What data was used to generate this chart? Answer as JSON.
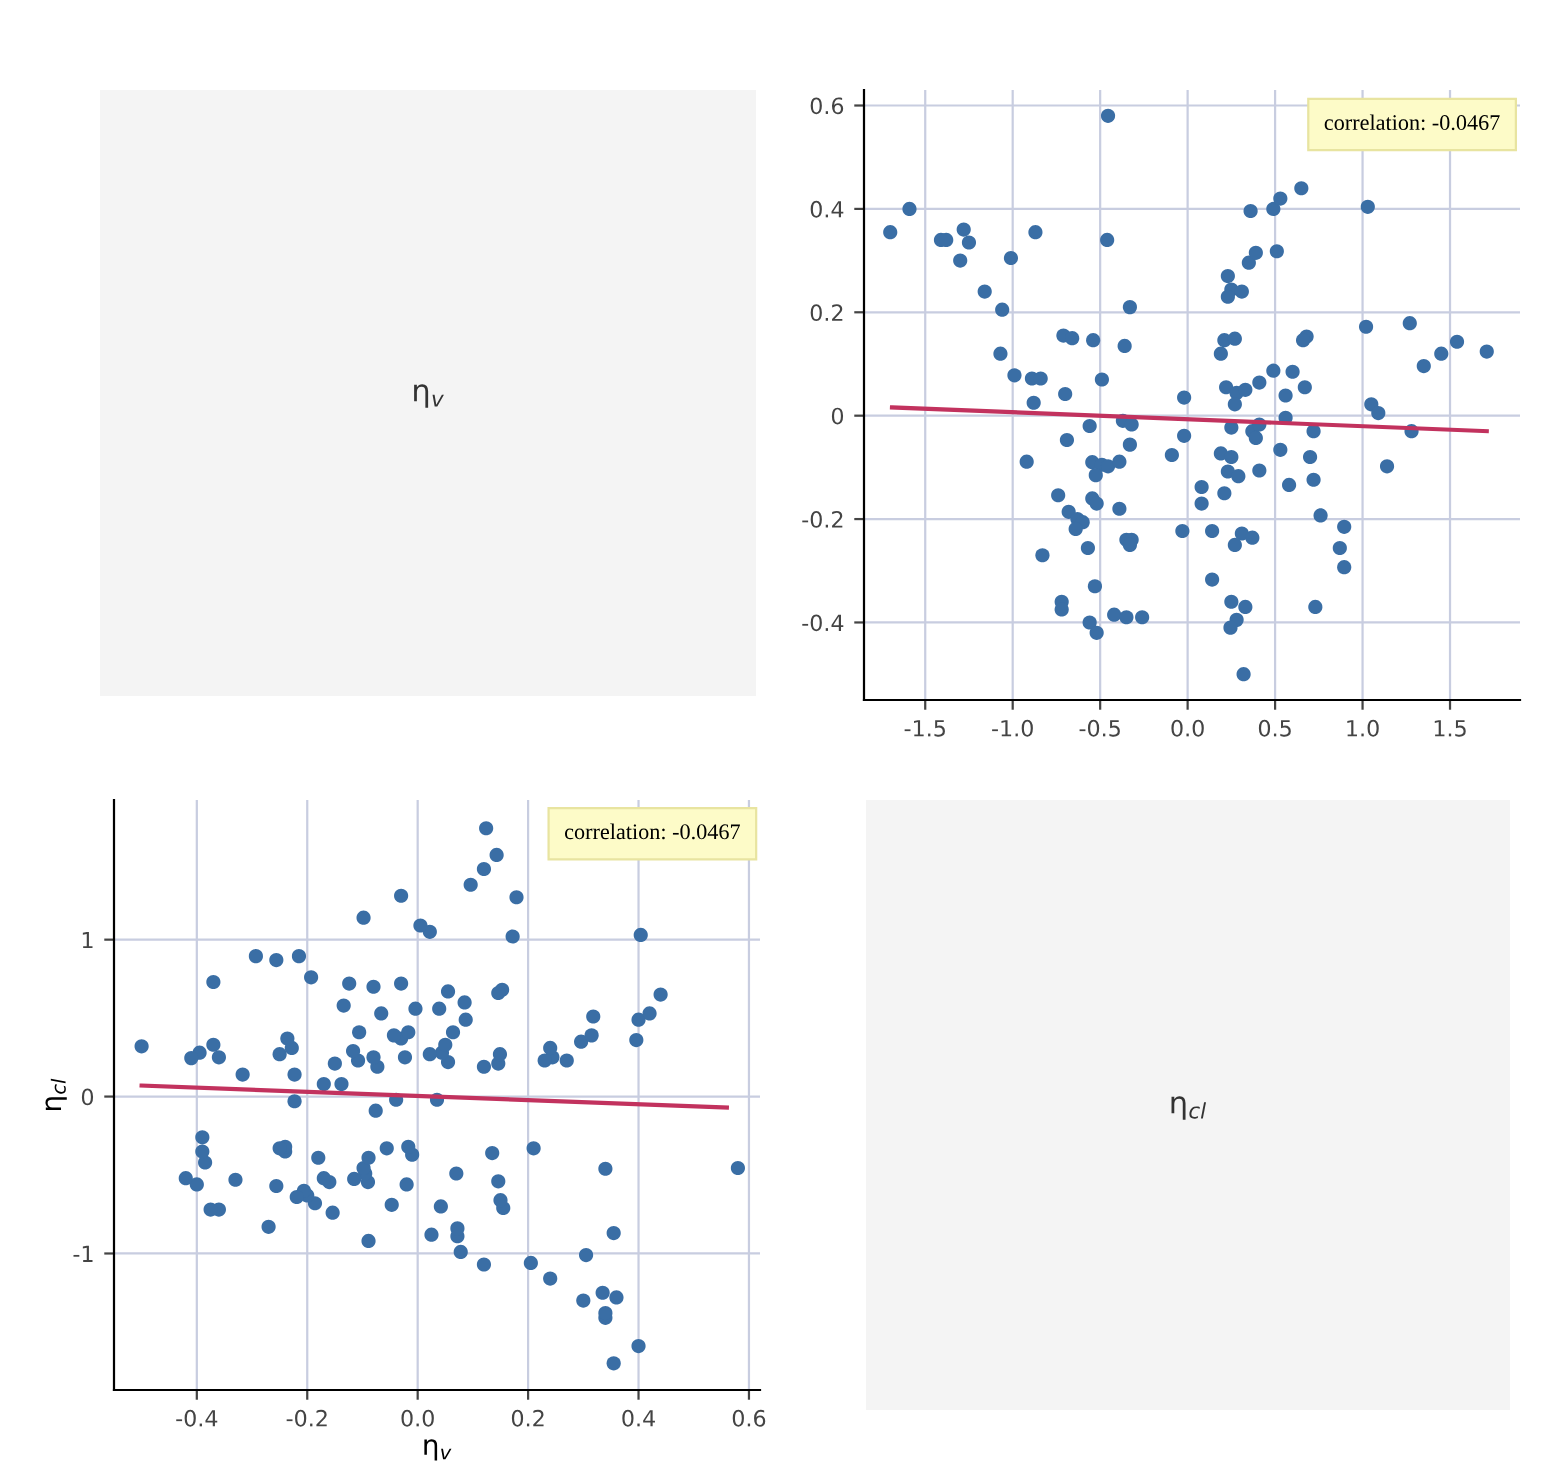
{
  "chart_data": [
    {
      "type": "other",
      "annotations": [
        "η$_{v}$"
      ]
    },
    {
      "type": "scatter",
      "grid": true,
      "xlim": [
        -1.85,
        1.9
      ],
      "ylim": [
        -0.55,
        0.63
      ],
      "xticks": [
        -1.5,
        {
          "value": -1,
          "label": "-1.0"
        },
        -0.5,
        {
          "value": 0,
          "label": "0.0"
        },
        0.5,
        {
          "value": 1,
          "label": "1.0"
        },
        1.5
      ],
      "yticks": [
        -0.4,
        -0.2,
        0,
        0.2,
        0.4,
        0.6
      ],
      "annotations": [
        "correlation: -0.0467"
      ],
      "series": [
        {
          "type": "scatter",
          "marker": "circle",
          "color": "#3a6ea5",
          "x": [
            -1.7,
            -1.59,
            -1.41,
            -1.38,
            -1.28,
            -1.25,
            -1.3,
            -1.16,
            -1.01,
            -1.06,
            -1.07,
            -0.99,
            -0.89,
            -0.84,
            -0.88,
            -0.87,
            -0.92,
            -0.83,
            -0.7,
            -0.69,
            -0.71,
            -0.66,
            -0.54,
            -0.49,
            -0.455,
            -0.46,
            -0.36,
            -0.33,
            -0.56,
            -0.37,
            -0.32,
            -0.33,
            -0.545,
            -0.49,
            -0.455,
            -0.525,
            -0.39,
            -0.74,
            -0.68,
            -0.63,
            -0.6,
            -0.64,
            -0.545,
            -0.52,
            -0.57,
            -0.39,
            -0.35,
            -0.32,
            -0.33,
            -0.53,
            -0.72,
            -0.72,
            -0.56,
            -0.52,
            -0.42,
            -0.35,
            -0.26,
            -0.09,
            -0.03,
            -0.02,
            -0.02,
            0.08,
            0.08,
            0.14,
            0.14,
            0.19,
            0.21,
            0.23,
            0.25,
            0.27,
            0.31,
            0.37,
            0.25,
            0.33,
            0.28,
            0.245,
            0.32,
            0.29,
            0.25,
            0.22,
            0.28,
            0.27,
            0.33,
            0.41,
            0.37,
            0.39,
            0.41,
            0.41,
            0.19,
            0.21,
            0.27,
            0.23,
            0.25,
            0.23,
            0.31,
            0.35,
            0.39,
            0.36,
            0.49,
            0.53,
            0.65,
            0.51,
            0.49,
            0.6,
            0.56,
            0.56,
            0.53,
            0.58,
            0.68,
            0.66,
            0.67,
            0.72,
            0.7,
            0.72,
            0.76,
            0.73,
            0.895,
            0.87,
            0.895,
            1.02,
            1.03,
            1.05,
            1.09,
            1.14,
            1.27,
            1.28,
            1.35,
            1.45,
            1.54,
            1.71
          ],
          "values": [
            0.355,
            0.4,
            0.34,
            0.34,
            0.36,
            0.335,
            0.3,
            0.24,
            0.305,
            0.205,
            0.12,
            0.078,
            0.072,
            0.072,
            0.025,
            0.355,
            -0.089,
            -0.27,
            0.042,
            -0.047,
            0.155,
            0.15,
            0.146,
            0.07,
            0.58,
            0.34,
            0.135,
            0.21,
            -0.02,
            -0.01,
            -0.017,
            -0.056,
            -0.09,
            -0.095,
            -0.098,
            -0.115,
            -0.089,
            -0.154,
            -0.186,
            -0.2,
            -0.206,
            -0.219,
            -0.16,
            -0.17,
            -0.256,
            -0.18,
            -0.24,
            -0.24,
            -0.25,
            -0.33,
            -0.36,
            -0.375,
            -0.4,
            -0.42,
            -0.385,
            -0.39,
            -0.39,
            -0.076,
            -0.223,
            0.035,
            -0.039,
            -0.138,
            -0.17,
            -0.223,
            -0.317,
            -0.073,
            -0.15,
            -0.108,
            -0.08,
            -0.25,
            -0.228,
            -0.236,
            -0.36,
            -0.37,
            -0.395,
            -0.41,
            -0.5,
            -0.117,
            -0.023,
            0.055,
            0.044,
            0.022,
            0.05,
            0.064,
            -0.03,
            -0.043,
            -0.017,
            -0.106,
            0.12,
            0.146,
            0.149,
            0.27,
            0.244,
            0.23,
            0.24,
            0.296,
            0.315,
            0.396,
            0.4,
            0.42,
            0.44,
            0.318,
            0.087,
            0.085,
            0.039,
            -0.004,
            -0.066,
            -0.134,
            0.153,
            0.146,
            0.055,
            -0.03,
            -0.08,
            -0.124,
            -0.193,
            -0.37,
            -0.215,
            -0.256,
            -0.293,
            0.172,
            0.404,
            0.022,
            0.005,
            -0.098,
            0.179,
            -0.03,
            0.096,
            0.12,
            0.143,
            0.124
          ]
        },
        {
          "type": "line",
          "marker": "none",
          "color": "#c2325e",
          "x": [
            -1.69,
            1.71
          ],
          "values": [
            0.016,
            -0.03
          ]
        }
      ]
    },
    {
      "type": "scatter",
      "grid": true,
      "xlim": [
        -0.55,
        0.62
      ],
      "ylim": [
        -1.87,
        1.89
      ],
      "xlabel": "η$_{v}$",
      "ylabel": "η$_{cl}$",
      "xticks": [
        -0.4,
        -0.2,
        {
          "value": 0,
          "label": "0.0"
        },
        0.2,
        0.4,
        0.6
      ],
      "yticks": [
        -1,
        0,
        1
      ],
      "annotations": [
        "correlation: -0.0467"
      ],
      "series": [
        {
          "type": "scatter",
          "marker": "circle",
          "color": "#3a6ea5",
          "x": [
            0.355,
            0.4,
            0.34,
            0.34,
            0.36,
            0.335,
            0.3,
            0.24,
            0.305,
            0.205,
            0.12,
            0.078,
            0.072,
            0.072,
            0.025,
            0.355,
            -0.089,
            -0.27,
            0.042,
            -0.047,
            0.155,
            0.15,
            0.146,
            0.07,
            0.58,
            0.34,
            0.135,
            0.21,
            -0.02,
            -0.01,
            -0.017,
            -0.056,
            -0.09,
            -0.095,
            -0.098,
            -0.115,
            -0.089,
            -0.154,
            -0.186,
            -0.2,
            -0.206,
            -0.219,
            -0.16,
            -0.17,
            -0.256,
            -0.18,
            -0.24,
            -0.24,
            -0.25,
            -0.33,
            -0.36,
            -0.375,
            -0.4,
            -0.42,
            -0.385,
            -0.39,
            -0.39,
            -0.076,
            -0.223,
            0.035,
            -0.039,
            -0.138,
            -0.17,
            -0.223,
            -0.317,
            -0.073,
            -0.15,
            -0.108,
            -0.08,
            -0.25,
            -0.228,
            -0.236,
            -0.36,
            -0.37,
            -0.395,
            -0.41,
            -0.5,
            -0.117,
            -0.023,
            0.055,
            0.044,
            0.022,
            0.05,
            0.064,
            -0.03,
            -0.043,
            -0.017,
            -0.106,
            0.12,
            0.146,
            0.149,
            0.27,
            0.244,
            0.23,
            0.24,
            0.296,
            0.315,
            0.396,
            0.4,
            0.42,
            0.44,
            0.318,
            0.087,
            0.085,
            0.039,
            -0.004,
            -0.066,
            -0.134,
            0.153,
            0.146,
            0.055,
            -0.03,
            -0.08,
            -0.124,
            -0.193,
            -0.37,
            -0.215,
            -0.256,
            -0.293,
            0.172,
            0.404,
            0.022,
            0.005,
            -0.098,
            0.179,
            -0.03,
            0.096,
            0.12,
            0.143,
            0.124
          ],
          "values": [
            -1.7,
            -1.59,
            -1.41,
            -1.38,
            -1.28,
            -1.25,
            -1.3,
            -1.16,
            -1.01,
            -1.06,
            -1.07,
            -0.99,
            -0.89,
            -0.84,
            -0.88,
            -0.87,
            -0.92,
            -0.83,
            -0.7,
            -0.69,
            -0.71,
            -0.66,
            -0.54,
            -0.49,
            -0.455,
            -0.46,
            -0.36,
            -0.33,
            -0.56,
            -0.37,
            -0.32,
            -0.33,
            -0.545,
            -0.49,
            -0.455,
            -0.525,
            -0.39,
            -0.74,
            -0.68,
            -0.63,
            -0.6,
            -0.64,
            -0.545,
            -0.52,
            -0.57,
            -0.39,
            -0.35,
            -0.32,
            -0.33,
            -0.53,
            -0.72,
            -0.72,
            -0.56,
            -0.52,
            -0.42,
            -0.35,
            -0.26,
            -0.09,
            -0.03,
            -0.02,
            -0.02,
            0.08,
            0.08,
            0.14,
            0.14,
            0.19,
            0.21,
            0.23,
            0.25,
            0.27,
            0.31,
            0.37,
            0.25,
            0.33,
            0.28,
            0.245,
            0.32,
            0.29,
            0.25,
            0.22,
            0.28,
            0.27,
            0.33,
            0.41,
            0.37,
            0.39,
            0.41,
            0.41,
            0.19,
            0.21,
            0.27,
            0.23,
            0.25,
            0.23,
            0.31,
            0.35,
            0.39,
            0.36,
            0.49,
            0.53,
            0.65,
            0.51,
            0.49,
            0.6,
            0.56,
            0.56,
            0.53,
            0.58,
            0.68,
            0.66,
            0.67,
            0.72,
            0.7,
            0.72,
            0.76,
            0.73,
            0.895,
            0.87,
            0.895,
            1.02,
            1.03,
            1.05,
            1.09,
            1.14,
            1.27,
            1.28,
            1.35,
            1.45,
            1.54,
            1.71
          ]
        },
        {
          "type": "line",
          "marker": "none",
          "color": "#c2325e",
          "x": [
            -0.5,
            0.56
          ],
          "values": [
            0.07,
            -0.07
          ]
        }
      ]
    },
    {
      "type": "other",
      "annotations": [
        "η$_{cl}$"
      ]
    }
  ]
}
